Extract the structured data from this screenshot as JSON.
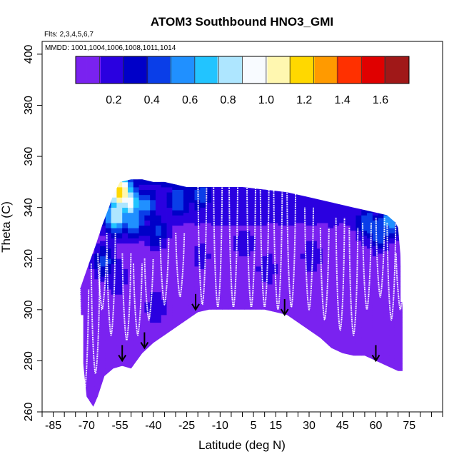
{
  "chart_data": {
    "type": "heatmap",
    "title": "ATOM3 Southbound HNO3_GMI",
    "subtitle_flights": "Flts: 2,3,4,5,6,7",
    "subtitle_dates": "MMDD: 1001,1004,1006,1008,1011,1014",
    "xlabel": "Latitude (deg N)",
    "ylabel": "Theta (C)",
    "xlim": [
      -90,
      90
    ],
    "ylim": [
      260,
      405
    ],
    "x_ticks": [
      -85,
      -70,
      -55,
      -40,
      -25,
      -10,
      5,
      15,
      30,
      45,
      60,
      75
    ],
    "y_ticks": [
      260,
      280,
      300,
      320,
      340,
      360,
      380,
      400
    ],
    "colorbar": {
      "range": [
        0,
        1.75
      ],
      "ticks": [
        0.2,
        0.4,
        0.6,
        0.8,
        1.0,
        1.2,
        1.4,
        1.6
      ],
      "tick_labels": [
        "0.2",
        "0.4",
        "0.6",
        "0.8",
        "1.0",
        "1.2",
        "1.4",
        "1.6"
      ],
      "colors": [
        "#7a22f0",
        "#2a00e0",
        "#0000c8",
        "#0a3ee8",
        "#2090ff",
        "#22c4ff",
        "#aee6ff",
        "#f8fbff",
        "#fff7b0",
        "#ffd800",
        "#ff9a00",
        "#ff3000",
        "#e00000",
        "#a01818"
      ]
    },
    "field": {
      "grid_step_lat": 2.5,
      "grid_step_theta": 2,
      "lower_boundary": [
        [
          -73,
          308
        ],
        [
          -72,
          283
        ],
        [
          -70,
          266
        ],
        [
          -67,
          262
        ],
        [
          -65,
          266
        ],
        [
          -62,
          274
        ],
        [
          -58,
          277
        ],
        [
          -54,
          278
        ],
        [
          -50,
          277
        ],
        [
          -45,
          283
        ],
        [
          -40,
          287
        ],
        [
          -35,
          290
        ],
        [
          -30,
          293
        ],
        [
          -25,
          296
        ],
        [
          -20,
          299
        ],
        [
          -15,
          300
        ],
        [
          -10,
          300
        ],
        [
          0,
          300
        ],
        [
          10,
          300
        ],
        [
          15,
          299
        ],
        [
          20,
          298
        ],
        [
          25,
          295
        ],
        [
          30,
          292
        ],
        [
          35,
          289
        ],
        [
          40,
          285
        ],
        [
          45,
          283
        ],
        [
          50,
          282
        ],
        [
          55,
          282
        ],
        [
          60,
          280
        ],
        [
          65,
          278
        ],
        [
          70,
          276
        ],
        [
          71,
          276
        ]
      ],
      "upper_boundary": [
        [
          -73,
          308
        ],
        [
          -69,
          318
        ],
        [
          -66,
          325
        ],
        [
          -63,
          333
        ],
        [
          -60,
          340
        ],
        [
          -58,
          345
        ],
        [
          -55,
          350
        ],
        [
          -50,
          351
        ],
        [
          -45,
          351
        ],
        [
          -40,
          350
        ],
        [
          -35,
          350
        ],
        [
          -30,
          349
        ],
        [
          -25,
          348
        ],
        [
          -20,
          348
        ],
        [
          -10,
          348
        ],
        [
          0,
          348
        ],
        [
          10,
          347
        ],
        [
          20,
          346
        ],
        [
          25,
          345
        ],
        [
          30,
          344
        ],
        [
          35,
          343
        ],
        [
          40,
          342
        ],
        [
          45,
          341
        ],
        [
          50,
          340
        ],
        [
          55,
          339
        ],
        [
          60,
          338
        ],
        [
          65,
          337
        ],
        [
          69,
          334
        ],
        [
          70,
          332
        ],
        [
          71,
          322
        ],
        [
          72,
          300
        ],
        [
          72,
          276
        ]
      ],
      "hotspots": [
        {
          "lat": -56,
          "theta": 345,
          "value": 1.2
        },
        {
          "lat": -52,
          "theta": 341,
          "value": 0.9
        },
        {
          "lat": -58,
          "theta": 336,
          "value": 0.85
        },
        {
          "lat": -50,
          "theta": 334,
          "value": 0.6
        },
        {
          "lat": -45,
          "theta": 340,
          "value": 0.55
        },
        {
          "lat": -40,
          "theta": 330,
          "value": 0.4
        },
        {
          "lat": -30,
          "theta": 342,
          "value": 0.5
        },
        {
          "lat": -20,
          "theta": 344,
          "value": 0.45
        },
        {
          "lat": -63,
          "theta": 318,
          "value": 0.4
        },
        {
          "lat": -58,
          "theta": 312,
          "value": 0.25
        },
        {
          "lat": 55,
          "theta": 333,
          "value": 0.45
        },
        {
          "lat": 60,
          "theta": 330,
          "value": 0.5
        },
        {
          "lat": 65,
          "theta": 334,
          "value": 0.6
        },
        {
          "lat": 40,
          "theta": 338,
          "value": 0.25
        },
        {
          "lat": 30,
          "theta": 320,
          "value": 0.2
        },
        {
          "lat": -20,
          "theta": 320,
          "value": 0.18
        },
        {
          "lat": 0,
          "theta": 325,
          "value": 0.22
        },
        {
          "lat": 10,
          "theta": 315,
          "value": 0.2
        },
        {
          "lat": -40,
          "theta": 300,
          "value": 0.2
        }
      ],
      "background_value": 0.02,
      "aloft_value": 0.25
    },
    "profile_markers": [
      {
        "lat": -54,
        "theta": 280
      },
      {
        "lat": -44,
        "theta": 285
      },
      {
        "lat": -21,
        "theta": 300
      },
      {
        "lat": 19,
        "theta": 298
      },
      {
        "lat": 60,
        "theta": 280
      }
    ],
    "flight_track_dips": [
      {
        "lat": -71,
        "top": 308,
        "bottom": 268
      },
      {
        "lat": -66,
        "top": 318,
        "bottom": 275
      },
      {
        "lat": -63,
        "top": 322,
        "bottom": 300
      },
      {
        "lat": -59,
        "top": 330,
        "bottom": 290
      },
      {
        "lat": -52,
        "top": 322,
        "bottom": 288
      },
      {
        "lat": -47,
        "top": 318,
        "bottom": 290
      },
      {
        "lat": -42,
        "top": 320,
        "bottom": 296
      },
      {
        "lat": -35,
        "top": 328,
        "bottom": 302
      },
      {
        "lat": -28,
        "top": 330,
        "bottom": 305
      },
      {
        "lat": -18,
        "top": 348,
        "bottom": 302
      },
      {
        "lat": -11,
        "top": 349,
        "bottom": 301
      },
      {
        "lat": -4,
        "top": 349,
        "bottom": 301
      },
      {
        "lat": 4,
        "top": 349,
        "bottom": 301
      },
      {
        "lat": 10,
        "top": 349,
        "bottom": 301
      },
      {
        "lat": 16,
        "top": 348,
        "bottom": 300
      },
      {
        "lat": 22,
        "top": 347,
        "bottom": 301
      },
      {
        "lat": 30,
        "top": 340,
        "bottom": 300
      },
      {
        "lat": 37,
        "top": 332,
        "bottom": 296
      },
      {
        "lat": 44,
        "top": 336,
        "bottom": 292
      },
      {
        "lat": 50,
        "top": 332,
        "bottom": 290
      },
      {
        "lat": 56,
        "top": 334,
        "bottom": 300
      },
      {
        "lat": 62,
        "top": 336,
        "bottom": 305
      },
      {
        "lat": 67,
        "top": 334,
        "bottom": 296
      },
      {
        "lat": 71,
        "top": 322,
        "bottom": 300
      }
    ]
  }
}
